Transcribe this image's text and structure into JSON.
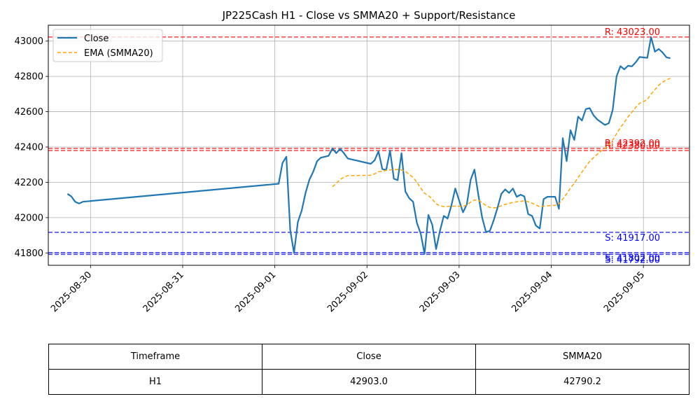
{
  "chart_data": {
    "type": "line",
    "title": "JP225Cash H1 - Close vs SMMA20 + Support/Resistance",
    "xlabel": "",
    "ylabel": "",
    "ylim": [
      41730,
      43090
    ],
    "xlim": [
      "2025-08-29 13:00",
      "2025-09-05 12:00"
    ],
    "yticks": [
      41800,
      42000,
      42200,
      42400,
      42600,
      42800,
      43000
    ],
    "xticks": [
      "2025-08-30",
      "2025-08-31",
      "2025-09-01",
      "2025-09-02",
      "2025-09-03",
      "2025-09-04",
      "2025-09-05"
    ],
    "grid": true,
    "legend": "top-left",
    "series": [
      {
        "name": "Close",
        "color": "#1f77b4",
        "style": "solid",
        "points": [
          [
            "2025-08-29 18:00",
            42135
          ],
          [
            "2025-08-29 19:00",
            42120
          ],
          [
            "2025-08-29 20:00",
            42090
          ],
          [
            "2025-08-29 21:00",
            42080
          ],
          [
            "2025-08-29 22:00",
            42090
          ],
          [
            "2025-08-29 23:00",
            42092
          ],
          [
            "2025-09-01 01:00",
            42192
          ],
          [
            "2025-09-01 02:00",
            42310
          ],
          [
            "2025-09-01 03:00",
            42345
          ],
          [
            "2025-09-01 04:00",
            41930
          ],
          [
            "2025-09-01 05:00",
            41800
          ],
          [
            "2025-09-01 06:00",
            41975
          ],
          [
            "2025-09-01 07:00",
            42040
          ],
          [
            "2025-09-01 08:00",
            42140
          ],
          [
            "2025-09-01 09:00",
            42215
          ],
          [
            "2025-09-01 10:00",
            42260
          ],
          [
            "2025-09-01 11:00",
            42320
          ],
          [
            "2025-09-01 12:00",
            42340
          ],
          [
            "2025-09-01 13:00",
            42345
          ],
          [
            "2025-09-01 14:00",
            42350
          ],
          [
            "2025-09-01 15:00",
            42392
          ],
          [
            "2025-09-01 16:00",
            42365
          ],
          [
            "2025-09-01 17:00",
            42390
          ],
          [
            "2025-09-01 18:00",
            42365
          ],
          [
            "2025-09-01 19:00",
            42335
          ],
          [
            "2025-09-02 01:00",
            42305
          ],
          [
            "2025-09-02 02:00",
            42325
          ],
          [
            "2025-09-02 03:00",
            42375
          ],
          [
            "2025-09-02 04:00",
            42275
          ],
          [
            "2025-09-02 05:00",
            42270
          ],
          [
            "2025-09-02 06:00",
            42380
          ],
          [
            "2025-09-02 07:00",
            42220
          ],
          [
            "2025-09-02 08:00",
            42212
          ],
          [
            "2025-09-02 09:00",
            42365
          ],
          [
            "2025-09-02 10:00",
            42148
          ],
          [
            "2025-09-02 11:00",
            42110
          ],
          [
            "2025-09-02 12:00",
            42090
          ],
          [
            "2025-09-02 13:00",
            41970
          ],
          [
            "2025-09-02 14:00",
            41910
          ],
          [
            "2025-09-02 15:00",
            41795
          ],
          [
            "2025-09-02 16:00",
            42015
          ],
          [
            "2025-09-02 17:00",
            41960
          ],
          [
            "2025-09-02 18:00",
            41822
          ],
          [
            "2025-09-02 19:00",
            41925
          ],
          [
            "2025-09-02 20:00",
            42010
          ],
          [
            "2025-09-02 21:00",
            41995
          ],
          [
            "2025-09-02 22:00",
            42070
          ],
          [
            "2025-09-02 23:00",
            42165
          ],
          [
            "2025-09-03 01:00",
            42030
          ],
          [
            "2025-09-03 02:00",
            42075
          ],
          [
            "2025-09-03 03:00",
            42215
          ],
          [
            "2025-09-03 04:00",
            42272
          ],
          [
            "2025-09-03 05:00",
            42130
          ],
          [
            "2025-09-03 06:00",
            42000
          ],
          [
            "2025-09-03 07:00",
            41918
          ],
          [
            "2025-09-03 08:00",
            41925
          ],
          [
            "2025-09-03 09:00",
            41985
          ],
          [
            "2025-09-03 10:00",
            42055
          ],
          [
            "2025-09-03 11:00",
            42135
          ],
          [
            "2025-09-03 12:00",
            42160
          ],
          [
            "2025-09-03 13:00",
            42140
          ],
          [
            "2025-09-03 14:00",
            42165
          ],
          [
            "2025-09-03 15:00",
            42118
          ],
          [
            "2025-09-03 16:00",
            42130
          ],
          [
            "2025-09-03 17:00",
            42120
          ],
          [
            "2025-09-03 18:00",
            42020
          ],
          [
            "2025-09-03 19:00",
            42010
          ],
          [
            "2025-09-03 20:00",
            41955
          ],
          [
            "2025-09-03 21:00",
            41938
          ],
          [
            "2025-09-03 22:00",
            42105
          ],
          [
            "2025-09-03 23:00",
            42118
          ],
          [
            "2025-09-04 01:00",
            42118
          ],
          [
            "2025-09-04 02:00",
            42050
          ],
          [
            "2025-09-04 03:00",
            42450
          ],
          [
            "2025-09-04 04:00",
            42320
          ],
          [
            "2025-09-04 05:00",
            42495
          ],
          [
            "2025-09-04 06:00",
            42440
          ],
          [
            "2025-09-04 07:00",
            42572
          ],
          [
            "2025-09-04 08:00",
            42550
          ],
          [
            "2025-09-04 09:00",
            42615
          ],
          [
            "2025-09-04 10:00",
            42620
          ],
          [
            "2025-09-04 11:00",
            42580
          ],
          [
            "2025-09-04 12:00",
            42555
          ],
          [
            "2025-09-04 13:00",
            42540
          ],
          [
            "2025-09-04 14:00",
            42525
          ],
          [
            "2025-09-04 15:00",
            42535
          ],
          [
            "2025-09-04 16:00",
            42610
          ],
          [
            "2025-09-04 17:00",
            42800
          ],
          [
            "2025-09-04 18:00",
            42858
          ],
          [
            "2025-09-04 19:00",
            42840
          ],
          [
            "2025-09-04 20:00",
            42860
          ],
          [
            "2025-09-04 21:00",
            42857
          ],
          [
            "2025-09-04 22:00",
            42880
          ],
          [
            "2025-09-04 23:00",
            42910
          ],
          [
            "2025-09-05 01:00",
            42905
          ],
          [
            "2025-09-05 02:00",
            43023
          ],
          [
            "2025-09-05 03:00",
            42940
          ],
          [
            "2025-09-05 04:00",
            42955
          ],
          [
            "2025-09-05 05:00",
            42935
          ],
          [
            "2025-09-05 06:00",
            42908
          ],
          [
            "2025-09-05 07:00",
            42903
          ]
        ]
      },
      {
        "name": "EMA (SMMA20)",
        "color": "#ffa500",
        "style": "dashed",
        "points": [
          [
            "2025-09-01 15:00",
            42175
          ],
          [
            "2025-09-01 16:00",
            42195
          ],
          [
            "2025-09-01 17:00",
            42215
          ],
          [
            "2025-09-01 18:00",
            42230
          ],
          [
            "2025-09-01 19:00",
            42238
          ],
          [
            "2025-09-02 01:00",
            42240
          ],
          [
            "2025-09-02 02:00",
            42248
          ],
          [
            "2025-09-02 03:00",
            42260
          ],
          [
            "2025-09-02 04:00",
            42262
          ],
          [
            "2025-09-02 05:00",
            42268
          ],
          [
            "2025-09-02 06:00",
            42270
          ],
          [
            "2025-09-02 07:00",
            42272
          ],
          [
            "2025-09-02 08:00",
            42272
          ],
          [
            "2025-09-02 09:00",
            42270
          ],
          [
            "2025-09-02 10:00",
            42262
          ],
          [
            "2025-09-02 11:00",
            42245
          ],
          [
            "2025-09-02 12:00",
            42228
          ],
          [
            "2025-09-02 13:00",
            42200
          ],
          [
            "2025-09-02 14:00",
            42168
          ],
          [
            "2025-09-02 15:00",
            42138
          ],
          [
            "2025-09-02 16:00",
            42125
          ],
          [
            "2025-09-02 17:00",
            42105
          ],
          [
            "2025-09-02 18:00",
            42078
          ],
          [
            "2025-09-02 19:00",
            42068
          ],
          [
            "2025-09-02 20:00",
            42062
          ],
          [
            "2025-09-02 21:00",
            42063
          ],
          [
            "2025-09-02 22:00",
            42065
          ],
          [
            "2025-09-02 23:00",
            42065
          ],
          [
            "2025-09-03 01:00",
            42063
          ],
          [
            "2025-09-03 02:00",
            42072
          ],
          [
            "2025-09-03 03:00",
            42088
          ],
          [
            "2025-09-03 04:00",
            42100
          ],
          [
            "2025-09-03 05:00",
            42098
          ],
          [
            "2025-09-03 06:00",
            42085
          ],
          [
            "2025-09-03 07:00",
            42068
          ],
          [
            "2025-09-03 08:00",
            42058
          ],
          [
            "2025-09-03 09:00",
            42055
          ],
          [
            "2025-09-03 10:00",
            42058
          ],
          [
            "2025-09-03 11:00",
            42068
          ],
          [
            "2025-09-03 12:00",
            42075
          ],
          [
            "2025-09-03 13:00",
            42080
          ],
          [
            "2025-09-03 14:00",
            42087
          ],
          [
            "2025-09-03 15:00",
            42090
          ],
          [
            "2025-09-03 16:00",
            42092
          ],
          [
            "2025-09-03 17:00",
            42095
          ],
          [
            "2025-09-03 18:00",
            42090
          ],
          [
            "2025-09-03 19:00",
            42082
          ],
          [
            "2025-09-03 20:00",
            42072
          ],
          [
            "2025-09-03 21:00",
            42062
          ],
          [
            "2025-09-03 22:00",
            42065
          ],
          [
            "2025-09-03 23:00",
            42067
          ],
          [
            "2025-09-04 01:00",
            42070
          ],
          [
            "2025-09-04 02:00",
            42078
          ],
          [
            "2025-09-04 03:00",
            42105
          ],
          [
            "2025-09-04 04:00",
            42135
          ],
          [
            "2025-09-04 05:00",
            42168
          ],
          [
            "2025-09-04 06:00",
            42195
          ],
          [
            "2025-09-04 07:00",
            42228
          ],
          [
            "2025-09-04 08:00",
            42258
          ],
          [
            "2025-09-04 09:00",
            42290
          ],
          [
            "2025-09-04 10:00",
            42318
          ],
          [
            "2025-09-04 11:00",
            42340
          ],
          [
            "2025-09-04 12:00",
            42360
          ],
          [
            "2025-09-04 13:00",
            42378
          ],
          [
            "2025-09-04 14:00",
            42392
          ],
          [
            "2025-09-04 15:00",
            42412
          ],
          [
            "2025-09-04 16:00",
            42440
          ],
          [
            "2025-09-04 17:00",
            42475
          ],
          [
            "2025-09-04 18:00",
            42510
          ],
          [
            "2025-09-04 19:00",
            42540
          ],
          [
            "2025-09-04 20:00",
            42570
          ],
          [
            "2025-09-04 21:00",
            42598
          ],
          [
            "2025-09-04 22:00",
            42625
          ],
          [
            "2025-09-04 23:00",
            42648
          ],
          [
            "2025-09-05 01:00",
            42668
          ],
          [
            "2025-09-05 02:00",
            42700
          ],
          [
            "2025-09-05 03:00",
            42725
          ],
          [
            "2025-09-05 04:00",
            42750
          ],
          [
            "2025-09-05 05:00",
            42768
          ],
          [
            "2025-09-05 06:00",
            42780
          ],
          [
            "2025-09-05 07:00",
            42790
          ]
        ]
      }
    ],
    "levels": [
      {
        "kind": "resistance",
        "value": 43023,
        "label": "R: 43023.00",
        "color": "#ff0000"
      },
      {
        "kind": "resistance",
        "value": 42392,
        "label": "R: 42392.00",
        "color": "#ff0000"
      },
      {
        "kind": "resistance",
        "value": 42380,
        "label": "R: 42380.00",
        "color": "#ff0000"
      },
      {
        "kind": "support",
        "value": 41917,
        "label": "S: 41917.00",
        "color": "#0000ff"
      },
      {
        "kind": "support",
        "value": 41802,
        "label": "S: 41802.00",
        "color": "#0000ff"
      },
      {
        "kind": "support",
        "value": 41792,
        "label": "S: 41792.00",
        "color": "#0000ff"
      }
    ]
  },
  "table": {
    "headers": [
      "Timeframe",
      "Close",
      "SMMA20"
    ],
    "row": [
      "H1",
      "42903.0",
      "42790.2"
    ]
  }
}
